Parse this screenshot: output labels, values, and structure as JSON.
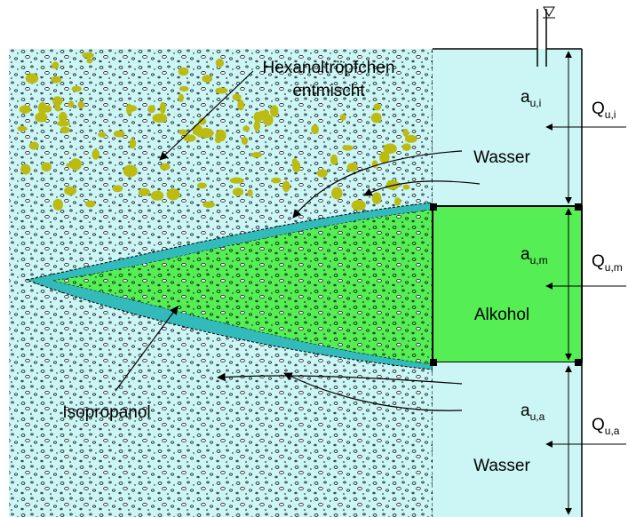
{
  "soil_labels": {
    "droplets": "Hexanoltröpfchen",
    "droplets_2": "entmischt",
    "isopropanol": "Isopropanol"
  },
  "well_labels": {
    "water_top": "Wasser",
    "alcohol": "Alkohol",
    "water_bottom": "Wasser"
  },
  "zones": [
    {
      "a": "a",
      "a_sub": "u,i",
      "q": "Q",
      "q_sub": "u,i"
    },
    {
      "a": "a",
      "a_sub": "u,m",
      "q": "Q",
      "q_sub": "u,m"
    },
    {
      "a": "a",
      "a_sub": "u,a",
      "q": "Q",
      "q_sub": "u,a"
    }
  ]
}
